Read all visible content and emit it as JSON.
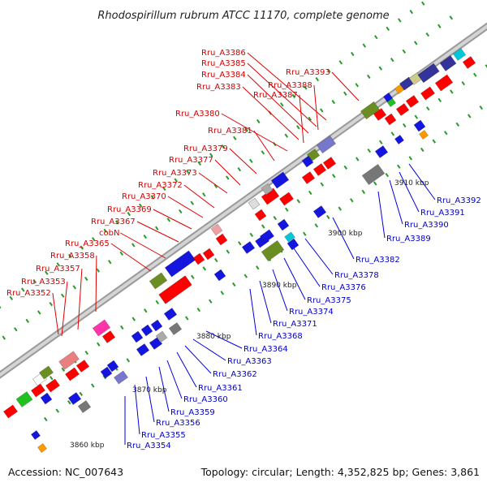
{
  "title": "Rhodospirillum rubrum ATCC 11170, complete genome",
  "footer": {
    "accession": "Accession: NC_007643",
    "topology": "Topology: circular; Length: 4,352,825 bp; Genes: 3,861"
  },
  "scale_labels": [
    "3860 kbp",
    "3870 kbp",
    "3880 kbp",
    "3890 kbp",
    "3900 kbp",
    "3910 kbp"
  ],
  "forward_genes": [
    "Rru_A3352",
    "Rru_A3353",
    "Rru_A3357",
    "Rru_A3358",
    "Rru_A3365",
    "cobN",
    "Rru_A3367",
    "Rru_A3369",
    "Rru_A3370",
    "Rru_A3372",
    "Rru_A3373",
    "Rru_A3377",
    "Rru_A3379",
    "Rru_A3381",
    "Rru_A3380",
    "Rru_A3383",
    "Rru_A3384",
    "Rru_A3385",
    "Rru_A3386",
    "Rru_A3387",
    "Rru_A3388",
    "Rru_A3393"
  ],
  "reverse_genes": [
    "Rru_A3354",
    "Rru_A3355",
    "Rru_A3356",
    "Rru_A3359",
    "Rru_A3360",
    "Rru_A3361",
    "Rru_A3362",
    "Rru_A3363",
    "Rru_A3364",
    "Rru_A3368",
    "Rru_A3371",
    "Rru_A3374",
    "Rru_A3375",
    "Rru_A3376",
    "Rru_A3378",
    "Rru_A3382",
    "Rru_A3389",
    "Rru_A3390",
    "Rru_A3391",
    "Rru_A3392"
  ],
  "colors": {
    "forward": "#ff0000",
    "reverse": "#1515e0",
    "backbone": "#bdbdbd",
    "tick": "#2a9a2a",
    "label_forward": "#d40000",
    "label_reverse": "#0000c8"
  }
}
